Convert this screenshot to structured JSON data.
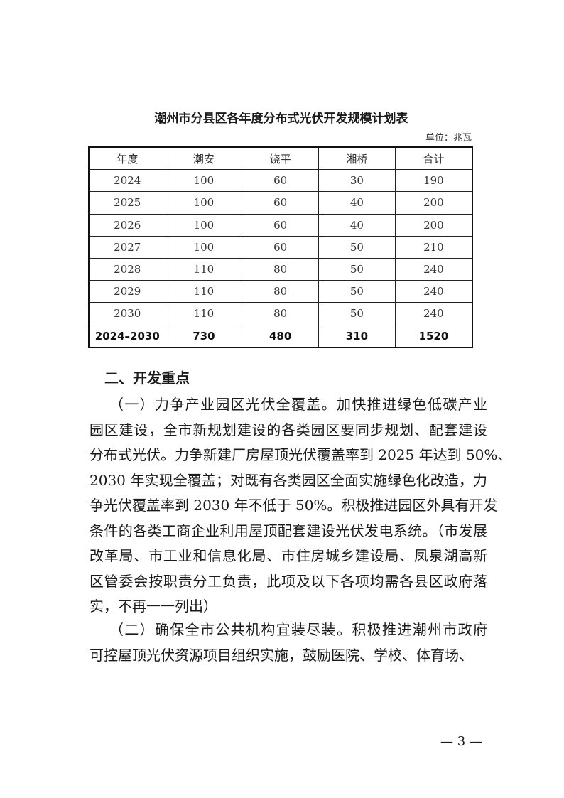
{
  "table": {
    "title": "潮州市分县区各年度分布式光伏开发规模计划表",
    "unit": "单位：兆瓦",
    "headers": [
      "年度",
      "潮安",
      "饶平",
      "湘桥",
      "合计"
    ],
    "rows": [
      [
        "2024",
        "100",
        "60",
        "30",
        "190"
      ],
      [
        "2025",
        "100",
        "60",
        "40",
        "200"
      ],
      [
        "2026",
        "100",
        "60",
        "40",
        "200"
      ],
      [
        "2027",
        "100",
        "60",
        "50",
        "210"
      ],
      [
        "2028",
        "110",
        "80",
        "50",
        "240"
      ],
      [
        "2029",
        "110",
        "80",
        "50",
        "240"
      ],
      [
        "2030",
        "110",
        "80",
        "50",
        "240"
      ]
    ],
    "total": [
      "2024–2030",
      "730",
      "480",
      "310",
      "1520"
    ]
  },
  "section_heading": "二、开发重点",
  "paragraph1": [
    "（一）力争产业园区光伏全覆盖。加快推进绿色低碳产业",
    "园区建设，全市新规划建设的各类园区要同步规划、配套建设",
    "分布式光伏。力争新建厂房屋顶光伏覆盖率到 2025 年达到 50%、",
    "2030 年实现全覆盖；对既有各类园区全面实施绿色化改造，力",
    "争光伏覆盖率到 2030 年不低于 50%。积极推进园区外具有开发",
    "条件的各类工商企业利用屋顶配套建设光伏发电系统。（市发展",
    "改革局、市工业和信息化局、市住房城乡建设局、凤泉湖高新",
    "区管委会按职责分工负责，此项及以下各项均需各县区政府落",
    "实，不再一一列出）"
  ],
  "paragraph2": [
    "（二）确保全市公共机构宜装尽装。积极推进潮州市政府",
    "可控屋顶光伏资源项目组织实施，鼓励医院、学校、体育场、"
  ],
  "page_number": "— 3 —"
}
